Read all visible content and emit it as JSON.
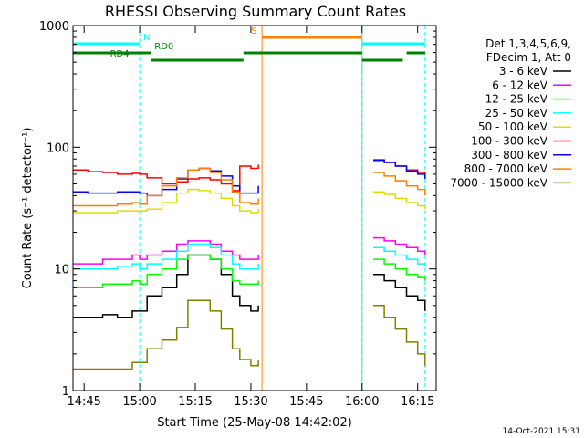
{
  "chart_data": {
    "type": "line",
    "title": "RHESSI Observing Summary Count Rates",
    "xlabel": "Start Time (25-May-08 14:42:02)",
    "ylabel": "Count Rate (s⁻¹ detector⁻¹)",
    "yscale": "log",
    "ylim": [
      1,
      1000
    ],
    "xlim_minutes_after_1442": [
      0,
      98
    ],
    "x_ticks": [
      "14:45",
      "15:00",
      "15:15",
      "15:30",
      "15:45",
      "16:00",
      "16:15"
    ],
    "y_ticks": [
      "1",
      "10",
      "100",
      "1000"
    ],
    "legend_header": [
      "Det 1,3,4,5,6,9,",
      "FDecim 1, Att 0"
    ],
    "timestamp": "14-Oct-2021 15:31",
    "grid": false,
    "legend_position": "right",
    "x_time_values": [
      "14:42",
      "14:46",
      "14:50",
      "14:54",
      "14:58",
      "15:00",
      "15:02",
      "15:06",
      "15:10",
      "15:13",
      "15:16",
      "15:19",
      "15:22",
      "15:25",
      "15:27",
      "15:30",
      "15:32",
      "16:00",
      "16:03",
      "16:06",
      "16:09",
      "16:12",
      "16:15",
      "16:17"
    ],
    "series": [
      {
        "name": "3 - 6 keV",
        "color": "#000000",
        "values": [
          4.0,
          4.0,
          4.2,
          4.0,
          4.5,
          4.5,
          6,
          7,
          9,
          13,
          13,
          12,
          9,
          6,
          5,
          4.5,
          5,
          null,
          9,
          8,
          7,
          6,
          5.5,
          4.5
        ]
      },
      {
        "name": "6 - 12 keV",
        "color": "#ff00ff",
        "values": [
          11,
          11,
          12,
          12,
          13,
          12,
          13,
          14,
          16,
          17,
          17,
          16,
          14,
          13,
          12,
          12,
          13,
          null,
          18,
          17,
          16,
          15,
          14,
          13
        ]
      },
      {
        "name": "12 - 25 keV",
        "color": "#00ff00",
        "values": [
          7,
          7,
          7.5,
          7.5,
          8,
          7.5,
          9,
          10,
          12,
          13,
          13,
          12,
          10,
          8,
          7.5,
          7.5,
          8,
          null,
          12,
          11,
          10,
          9,
          8.5,
          8
        ]
      },
      {
        "name": "25 - 50 keV",
        "color": "#00ffff",
        "values": [
          10,
          10,
          10,
          10.5,
          11,
          10,
          11,
          12,
          14,
          16,
          16,
          15,
          13,
          11,
          10,
          10,
          11,
          null,
          15,
          14,
          13,
          12,
          11,
          10.5
        ]
      },
      {
        "name": "50 - 100 keV",
        "color": "#dddd00",
        "values": [
          29,
          29,
          29,
          30,
          30,
          30,
          31,
          35,
          42,
          45,
          44,
          42,
          38,
          33,
          30,
          29,
          31,
          null,
          43,
          41,
          38,
          35,
          33,
          31
        ]
      },
      {
        "name": "100 - 300 keV",
        "color": "#ff0000",
        "values": [
          65,
          63,
          62,
          60,
          61,
          60,
          56,
          50,
          52,
          55,
          56,
          54,
          50,
          44,
          70,
          67,
          72,
          null,
          79,
          75,
          70,
          65,
          62,
          57
        ]
      },
      {
        "name": "300 - 800 keV",
        "color": "#0000ff",
        "values": [
          43,
          42,
          42,
          43,
          43,
          42,
          40,
          45,
          55,
          65,
          67,
          64,
          58,
          48,
          42,
          42,
          48,
          null,
          78,
          75,
          70,
          64,
          60,
          55
        ]
      },
      {
        "name": "800 - 7000 keV",
        "color": "#ff8000",
        "values": [
          33,
          33,
          33,
          34,
          35,
          34,
          40,
          48,
          56,
          65,
          67,
          62,
          54,
          43,
          35,
          34,
          38,
          null,
          62,
          58,
          53,
          48,
          45,
          40
        ]
      },
      {
        "name": "7000 - 15000 keV",
        "color": "#808000",
        "values": [
          1.5,
          1.5,
          1.5,
          1.5,
          1.7,
          1.7,
          2.2,
          2.6,
          3.3,
          5.5,
          5.5,
          4.5,
          3.2,
          2.2,
          1.8,
          1.6,
          1.8,
          null,
          5,
          4,
          3.2,
          2.5,
          2,
          1.6
        ]
      }
    ],
    "state_flags": [
      {
        "label": "N",
        "color": "#00ffff",
        "segments": [
          [
            "14:42",
            "15:00"
          ],
          [
            "16:00",
            "16:17"
          ]
        ]
      },
      {
        "label": "RD0",
        "color": "#008000",
        "segments": [
          [
            "14:42",
            "15:03"
          ],
          [
            "15:28",
            "16:00"
          ],
          [
            "16:12",
            "16:17"
          ]
        ]
      },
      {
        "label": "RD4",
        "color": "#008000",
        "segments": [
          [
            "15:03",
            "15:28"
          ],
          [
            "16:00",
            "16:11"
          ]
        ]
      },
      {
        "label": "S",
        "color": "#ff8000",
        "segments": [
          [
            "15:33",
            "16:00"
          ]
        ]
      }
    ],
    "vertical_markers": [
      {
        "time": "14:42",
        "color": "#00ffff",
        "style": "solid"
      },
      {
        "time": "15:00",
        "color": "#00ffff",
        "style": "dashed"
      },
      {
        "time": "15:33",
        "color": "#ff8000",
        "style": "solid"
      },
      {
        "time": "16:00",
        "color": "#ff8000",
        "style": "dashed"
      },
      {
        "time": "16:00",
        "color": "#00ffff",
        "style": "solid"
      },
      {
        "time": "16:17",
        "color": "#00ffff",
        "style": "dashed"
      }
    ]
  }
}
